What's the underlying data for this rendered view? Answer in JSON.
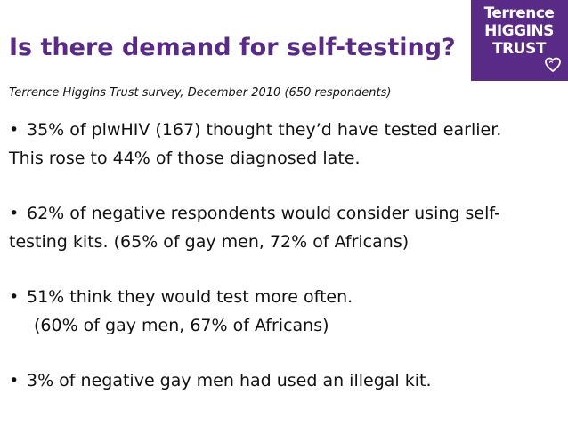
{
  "slide": {
    "title": "Is there demand for self-testing?",
    "subtitle": "Terrence Higgins Trust survey, December 2010 (650 respondents)",
    "logo": {
      "lines": [
        "Terrence",
        "HIGGINS",
        "TRUST"
      ],
      "icon": "heart-icon",
      "background_color": "#5a2b86"
    },
    "bullets": [
      {
        "marker": "•",
        "line1": "35% of plwHIV (167) thought they’d have tested earlier.",
        "line2": "This rose to 44% of those diagnosed late."
      },
      {
        "marker": "•",
        "line1": "62% of negative respondents would consider using self-",
        "line2": "testing kits.  (65% of gay men, 72% of Africans)"
      },
      {
        "marker": "•",
        "line1": "51% think they would test more often.",
        "line2": "(60% of gay men, 67% of Africans)"
      },
      {
        "marker": "•",
        "line1": "3% of negative gay men had used an illegal kit."
      }
    ]
  }
}
